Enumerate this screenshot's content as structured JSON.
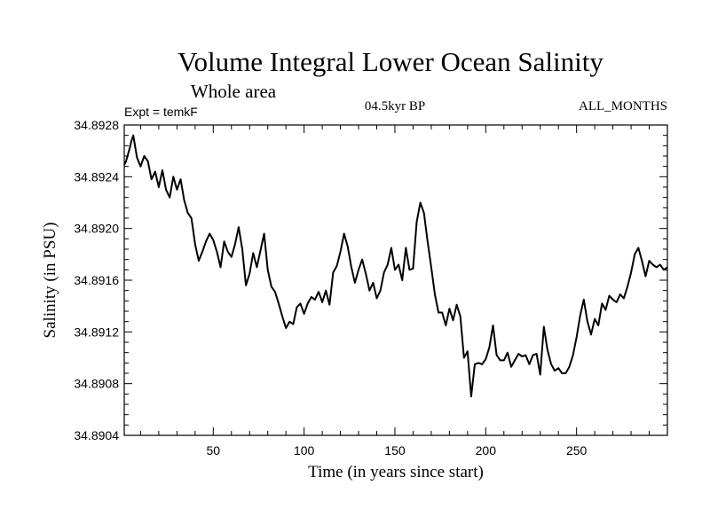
{
  "chart_data": {
    "type": "line",
    "title": "Volume Integral Lower Ocean Salinity",
    "subtitle": "Whole area",
    "left_label": "Expt = temkF",
    "center_label": "04.5kyr BP",
    "right_label": "ALL_MONTHS",
    "xlabel": "Time (in years since start)",
    "ylabel": "Salinity (in PSU)",
    "xlim": [
      1,
      300
    ],
    "ylim": [
      34.8904,
      34.8928
    ],
    "x_ticks": [
      50,
      100,
      150,
      200,
      250
    ],
    "x_tick_labels": [
      "50",
      "100",
      "150",
      "200",
      "250"
    ],
    "y_ticks": [
      34.8904,
      34.8908,
      34.8912,
      34.8916,
      34.892,
      34.8924,
      34.8928
    ],
    "y_tick_labels": [
      "34.8904",
      "34.8908",
      "34.8912",
      "34.8916",
      "34.8920",
      "34.8924",
      "34.8928"
    ],
    "series": [
      {
        "name": "Salinity",
        "color": "#000000",
        "x": [
          1,
          2,
          3,
          4,
          5,
          6,
          8,
          10,
          12,
          14,
          16,
          18,
          20,
          22,
          24,
          26,
          28,
          30,
          32,
          34,
          36,
          38,
          40,
          42,
          44,
          46,
          48,
          50,
          52,
          54,
          56,
          58,
          60,
          62,
          64,
          66,
          68,
          70,
          72,
          74,
          76,
          78,
          80,
          82,
          84,
          86,
          88,
          90,
          92,
          94,
          96,
          98,
          100,
          102,
          104,
          106,
          108,
          110,
          112,
          114,
          116,
          118,
          120,
          122,
          124,
          126,
          128,
          130,
          132,
          134,
          136,
          138,
          140,
          142,
          144,
          146,
          148,
          150,
          152,
          154,
          156,
          158,
          160,
          162,
          164,
          166,
          168,
          170,
          172,
          174,
          176,
          178,
          180,
          182,
          184,
          186,
          188,
          190,
          192,
          194,
          196,
          198,
          200,
          202,
          204,
          206,
          208,
          210,
          212,
          214,
          216,
          218,
          220,
          222,
          224,
          226,
          228,
          230,
          232,
          234,
          236,
          238,
          240,
          242,
          244,
          246,
          248,
          250,
          252,
          254,
          256,
          258,
          260,
          262,
          264,
          266,
          268,
          270,
          272,
          274,
          276,
          278,
          280,
          282,
          284,
          286,
          288,
          290,
          292,
          294,
          296,
          298,
          300
        ],
        "y": [
          34.89249,
          34.89252,
          34.89257,
          34.89262,
          34.89268,
          34.89272,
          34.89255,
          34.89248,
          34.89256,
          34.89252,
          34.89238,
          34.89244,
          34.89232,
          34.89245,
          34.8923,
          34.89224,
          34.8924,
          34.8923,
          34.89238,
          34.89222,
          34.89212,
          34.89208,
          34.89188,
          34.89175,
          34.89182,
          34.8919,
          34.89196,
          34.89191,
          34.89182,
          34.8917,
          34.8919,
          34.89182,
          34.89178,
          34.89188,
          34.89201,
          34.89184,
          34.89156,
          34.89165,
          34.89181,
          34.8917,
          34.89183,
          34.89196,
          34.89168,
          34.89155,
          34.89151,
          34.89142,
          34.89132,
          34.89123,
          34.89128,
          34.89126,
          34.89139,
          34.89142,
          34.89134,
          34.89142,
          34.89147,
          34.89145,
          34.89151,
          34.89143,
          34.89152,
          34.89141,
          34.89166,
          34.89171,
          34.89182,
          34.89196,
          34.89186,
          34.8917,
          34.89158,
          34.89168,
          34.89176,
          34.89165,
          34.89152,
          34.89158,
          34.89146,
          34.89152,
          34.89166,
          34.89172,
          34.89185,
          34.89168,
          34.89172,
          34.8916,
          34.89185,
          34.89168,
          34.89169,
          34.89205,
          34.8922,
          34.89212,
          34.8919,
          34.8917,
          34.89149,
          34.89135,
          34.89135,
          34.89125,
          34.89138,
          34.89129,
          34.89141,
          34.89132,
          34.891,
          34.89105,
          34.8907,
          34.89095,
          34.89096,
          34.89095,
          34.89099,
          34.89108,
          34.89125,
          34.89102,
          34.89098,
          34.89098,
          34.89104,
          34.89093,
          34.89098,
          34.89103,
          34.89101,
          34.89102,
          34.89095,
          34.89102,
          34.89103,
          34.89087,
          34.89124,
          34.89106,
          34.89095,
          34.8909,
          34.89092,
          34.89088,
          34.89088,
          34.89093,
          34.89102,
          34.89116,
          34.89133,
          34.89145,
          34.89128,
          34.89118,
          34.8913,
          34.89125,
          34.89142,
          34.89137,
          34.89148,
          34.89145,
          34.89143,
          34.89149,
          34.89146,
          34.89155,
          34.89166,
          34.8918,
          34.89185,
          34.89175,
          34.89163,
          34.89175,
          34.89172,
          34.8917,
          34.89172,
          34.89168,
          34.8917
        ]
      }
    ]
  }
}
